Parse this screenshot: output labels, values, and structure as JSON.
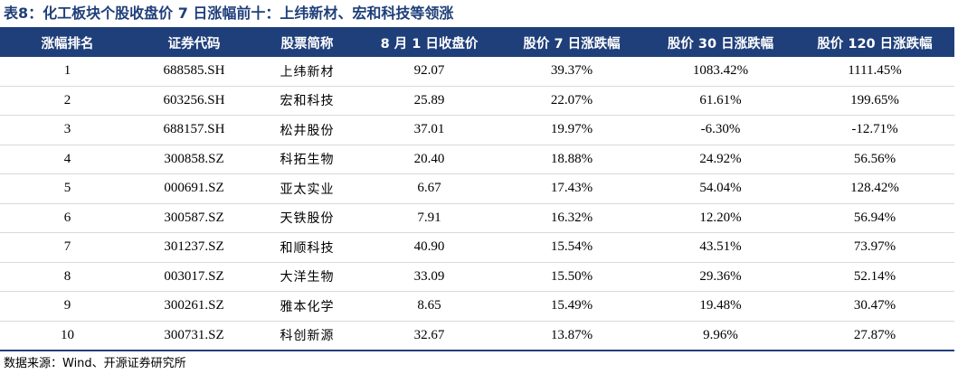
{
  "title": "表8：化工板块个股收盘价 7 日涨幅前十：上纬新材、宏和科技等领涨",
  "headers": [
    "涨幅排名",
    "证券代码",
    "股票简称",
    "8 月 1 日收盘价",
    "股价 7 日涨跌幅",
    "股价 30 日涨跌幅",
    "股价 120 日涨跌幅"
  ],
  "rows": [
    [
      "1",
      "688585.SH",
      "上纬新材",
      "92.07",
      "39.37%",
      "1083.42%",
      "1111.45%"
    ],
    [
      "2",
      "603256.SH",
      "宏和科技",
      "25.89",
      "22.07%",
      "61.61%",
      "199.65%"
    ],
    [
      "3",
      "688157.SH",
      "松井股份",
      "37.01",
      "19.97%",
      "-6.30%",
      "-12.71%"
    ],
    [
      "4",
      "300858.SZ",
      "科拓生物",
      "20.40",
      "18.88%",
      "24.92%",
      "56.56%"
    ],
    [
      "5",
      "000691.SZ",
      "亚太实业",
      "6.67",
      "17.43%",
      "54.04%",
      "128.42%"
    ],
    [
      "6",
      "300587.SZ",
      "天铁股份",
      "7.91",
      "16.32%",
      "12.20%",
      "56.94%"
    ],
    [
      "7",
      "301237.SZ",
      "和顺科技",
      "40.90",
      "15.54%",
      "43.51%",
      "73.97%"
    ],
    [
      "8",
      "003017.SZ",
      "大洋生物",
      "33.09",
      "15.50%",
      "29.36%",
      "52.14%"
    ],
    [
      "9",
      "300261.SZ",
      "雅本化学",
      "8.65",
      "15.49%",
      "19.48%",
      "30.47%"
    ],
    [
      "10",
      "300731.SZ",
      "科创新源",
      "32.67",
      "13.87%",
      "9.96%",
      "27.87%"
    ]
  ],
  "source": "数据来源：Wind、开源证券研究所",
  "colors": {
    "header_bg": "#1f3f7a",
    "header_text": "#ffffff",
    "title_text": "#1f3f7a"
  }
}
